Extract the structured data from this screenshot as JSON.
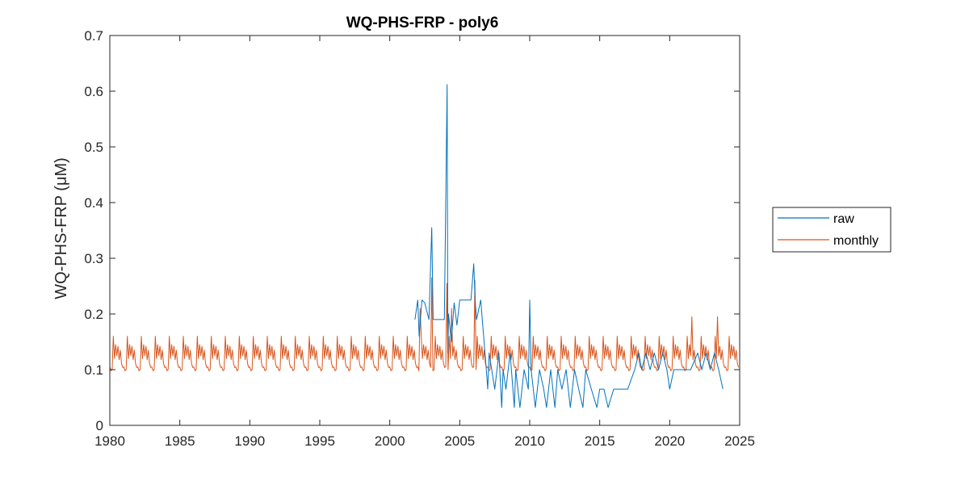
{
  "chart_data": {
    "type": "line",
    "title": "WQ-PHS-FRP - poly6",
    "xlabel": "",
    "ylabel": "WQ-PHS-FRP (μM)",
    "xlim": [
      1980,
      2025
    ],
    "ylim": [
      0,
      0.7
    ],
    "xticks": [
      1980,
      1985,
      1990,
      1995,
      2000,
      2005,
      2010,
      2015,
      2020,
      2025
    ],
    "yticks": [
      0,
      0.1,
      0.2,
      0.3,
      0.4,
      0.5,
      0.6,
      0.7
    ],
    "ytick_labels": [
      "0",
      "0.1",
      "0.2",
      "0.3",
      "0.4",
      "0.5",
      "0.6",
      "0.7"
    ],
    "grid": false,
    "legend_position": "outside-right",
    "series": [
      {
        "name": "raw",
        "color": "#0072BD",
        "x": [
          2001.8,
          2002.0,
          2002.1,
          2002.3,
          2002.5,
          2002.8,
          2003.0,
          2003.1,
          2003.3,
          2003.6,
          2003.9,
          2004.1,
          2004.15,
          2004.2,
          2004.4,
          2004.6,
          2004.8,
          2005.0,
          2005.3,
          2005.6,
          2005.8,
          2006.0,
          2006.1,
          2006.2,
          2006.5,
          2006.9,
          2007.0,
          2007.1,
          2007.5,
          2007.8,
          2008.0,
          2008.1,
          2008.3,
          2008.6,
          2008.9,
          2009.0,
          2009.3,
          2009.6,
          2009.9,
          2010.0,
          2010.1,
          2010.4,
          2010.7,
          2011.0,
          2011.2,
          2011.5,
          2011.8,
          2012.0,
          2012.3,
          2012.6,
          2012.9,
          2013.2,
          2013.5,
          2013.8,
          2014.0,
          2014.4,
          2014.8,
          2015.0,
          2015.3,
          2015.6,
          2016.0,
          2016.5,
          2017.0,
          2017.5,
          2017.8,
          2018.0,
          2018.3,
          2018.6,
          2018.9,
          2019.2,
          2019.5,
          2019.8,
          2020.0,
          2020.3,
          2020.6,
          2021.0,
          2021.5,
          2022.0,
          2022.3,
          2022.6,
          2022.9,
          2023.2,
          2023.5,
          2023.8
        ],
        "values": [
          0.19,
          0.225,
          0.16,
          0.225,
          0.22,
          0.19,
          0.355,
          0.19,
          0.19,
          0.19,
          0.19,
          0.612,
          0.13,
          0.2,
          0.15,
          0.22,
          0.18,
          0.225,
          0.225,
          0.225,
          0.225,
          0.29,
          0.225,
          0.19,
          0.225,
          0.1,
          0.065,
          0.13,
          0.065,
          0.13,
          0.032,
          0.1,
          0.065,
          0.13,
          0.032,
          0.1,
          0.032,
          0.1,
          0.065,
          0.225,
          0.1,
          0.032,
          0.1,
          0.065,
          0.032,
          0.1,
          0.032,
          0.1,
          0.065,
          0.1,
          0.032,
          0.1,
          0.065,
          0.032,
          0.1,
          0.065,
          0.032,
          0.065,
          0.065,
          0.032,
          0.065,
          0.065,
          0.065,
          0.1,
          0.13,
          0.1,
          0.13,
          0.1,
          0.13,
          0.1,
          0.13,
          0.1,
          0.065,
          0.1,
          0.1,
          0.1,
          0.1,
          0.13,
          0.1,
          0.13,
          0.1,
          0.13,
          0.1,
          0.065
        ]
      },
      {
        "name": "monthly",
        "color": "#D95319",
        "x": [],
        "values": []
      }
    ]
  },
  "monthly_pattern": [
    0.105,
    0.098,
    0.1,
    0.16,
    0.12,
    0.145,
    0.125,
    0.142,
    0.118,
    0.135,
    0.112,
    0.104
  ],
  "monthly_spikes": [
    {
      "x": 2002.2,
      "y": 0.21
    },
    {
      "x": 2003.0,
      "y": 0.265
    },
    {
      "x": 2004.1,
      "y": 0.255
    },
    {
      "x": 2004.4,
      "y": 0.21
    },
    {
      "x": 2006.1,
      "y": 0.26
    },
    {
      "x": 2021.6,
      "y": 0.195
    },
    {
      "x": 2023.4,
      "y": 0.195
    }
  ]
}
